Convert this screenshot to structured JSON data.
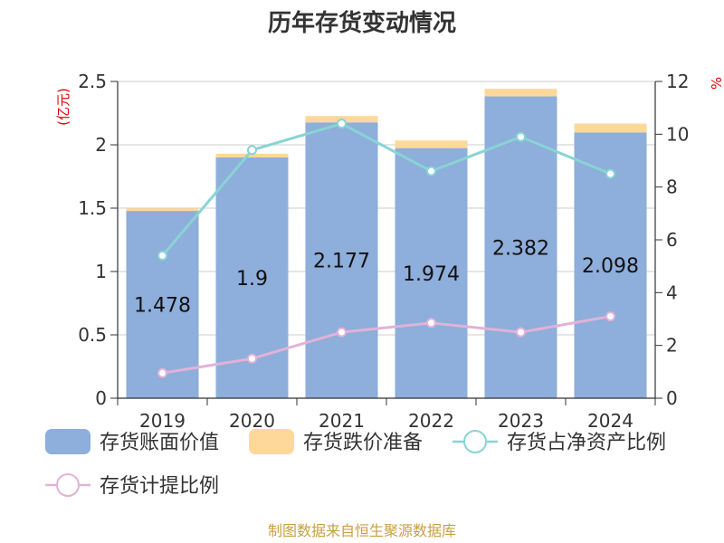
{
  "title": "历年存货变动情况",
  "source": "制图数据来自恒生聚源数据库",
  "chart_data": {
    "type": "bar",
    "categories": [
      "2019",
      "2020",
      "2021",
      "2022",
      "2023",
      "2024"
    ],
    "left_axis": {
      "unit_label": "(亿元)",
      "range": [
        0,
        2.5
      ],
      "ticks": [
        "0",
        "0.5",
        "1",
        "1.5",
        "2",
        "2.5"
      ]
    },
    "right_axis": {
      "unit_label": "%",
      "range": [
        0,
        12
      ],
      "ticks": [
        "0",
        "2",
        "4",
        "6",
        "8",
        "10",
        "12"
      ]
    },
    "grid": true,
    "legend_position": "bottom",
    "series": [
      {
        "name": "存货账面价值",
        "kind": "bar",
        "stack": "inv",
        "axis": "left",
        "color": "#8eaedb",
        "values": [
          1.478,
          1.9,
          2.177,
          1.974,
          2.382,
          2.098
        ],
        "labels": [
          "1.478",
          "1.9",
          "2.177",
          "1.974",
          "2.382",
          "2.098"
        ]
      },
      {
        "name": "存货跌价准备",
        "kind": "bar",
        "stack": "inv",
        "axis": "left",
        "color": "#fdd89a",
        "values": [
          0.02,
          0.03,
          0.05,
          0.06,
          0.06,
          0.07
        ]
      },
      {
        "name": "存货占净资产比例",
        "kind": "line",
        "axis": "right",
        "color": "#88d4d4",
        "values": [
          5.4,
          9.4,
          10.4,
          8.6,
          9.9,
          8.5
        ]
      },
      {
        "name": "存货计提比例",
        "kind": "line",
        "axis": "right",
        "color": "#e2b2d6",
        "values": [
          0.95,
          1.5,
          2.5,
          2.85,
          2.5,
          3.1
        ]
      }
    ]
  }
}
